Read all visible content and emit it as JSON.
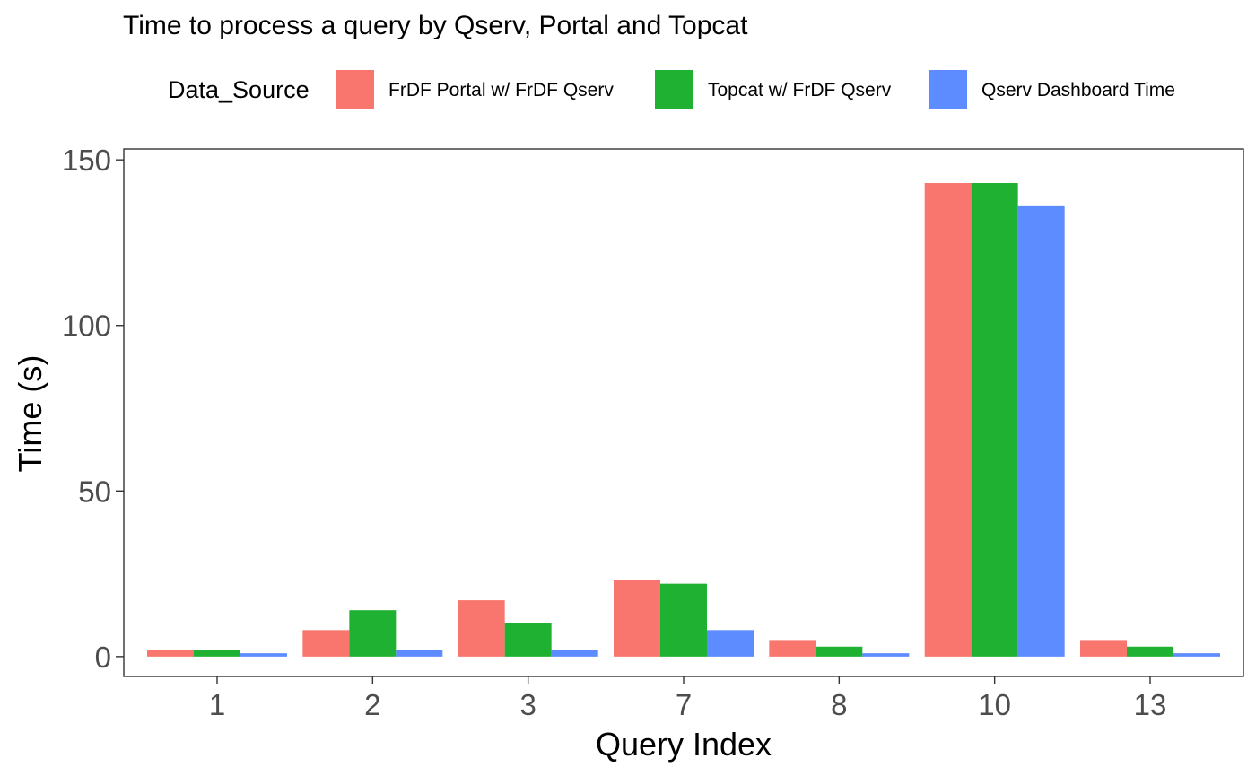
{
  "chart_data": {
    "type": "bar",
    "title": "Time to process a query by Qserv, Portal and Topcat",
    "xlabel": "Query Index",
    "ylabel": "Time (s)",
    "ylim": [
      -6,
      150
    ],
    "yticks": [
      0,
      50,
      100,
      150
    ],
    "grid": false,
    "legend": {
      "title": "Data_Source",
      "placement": "top"
    },
    "categories": [
      "1",
      "2",
      "3",
      "7",
      "8",
      "10",
      "13"
    ],
    "series": [
      {
        "name": "FrDF Portal w/ FrDF Qserv",
        "color": "#F8766D",
        "values": [
          2,
          8,
          17,
          23,
          5,
          143,
          5
        ]
      },
      {
        "name": "Topcat w/ FrDF Qserv",
        "color": "#1FB232",
        "values": [
          2,
          14,
          10,
          22,
          3,
          143,
          3
        ]
      },
      {
        "name": "Qserv Dashboard Time",
        "color": "#5C8CFF",
        "values": [
          1,
          2,
          2,
          8,
          1,
          136,
          1
        ]
      }
    ]
  }
}
